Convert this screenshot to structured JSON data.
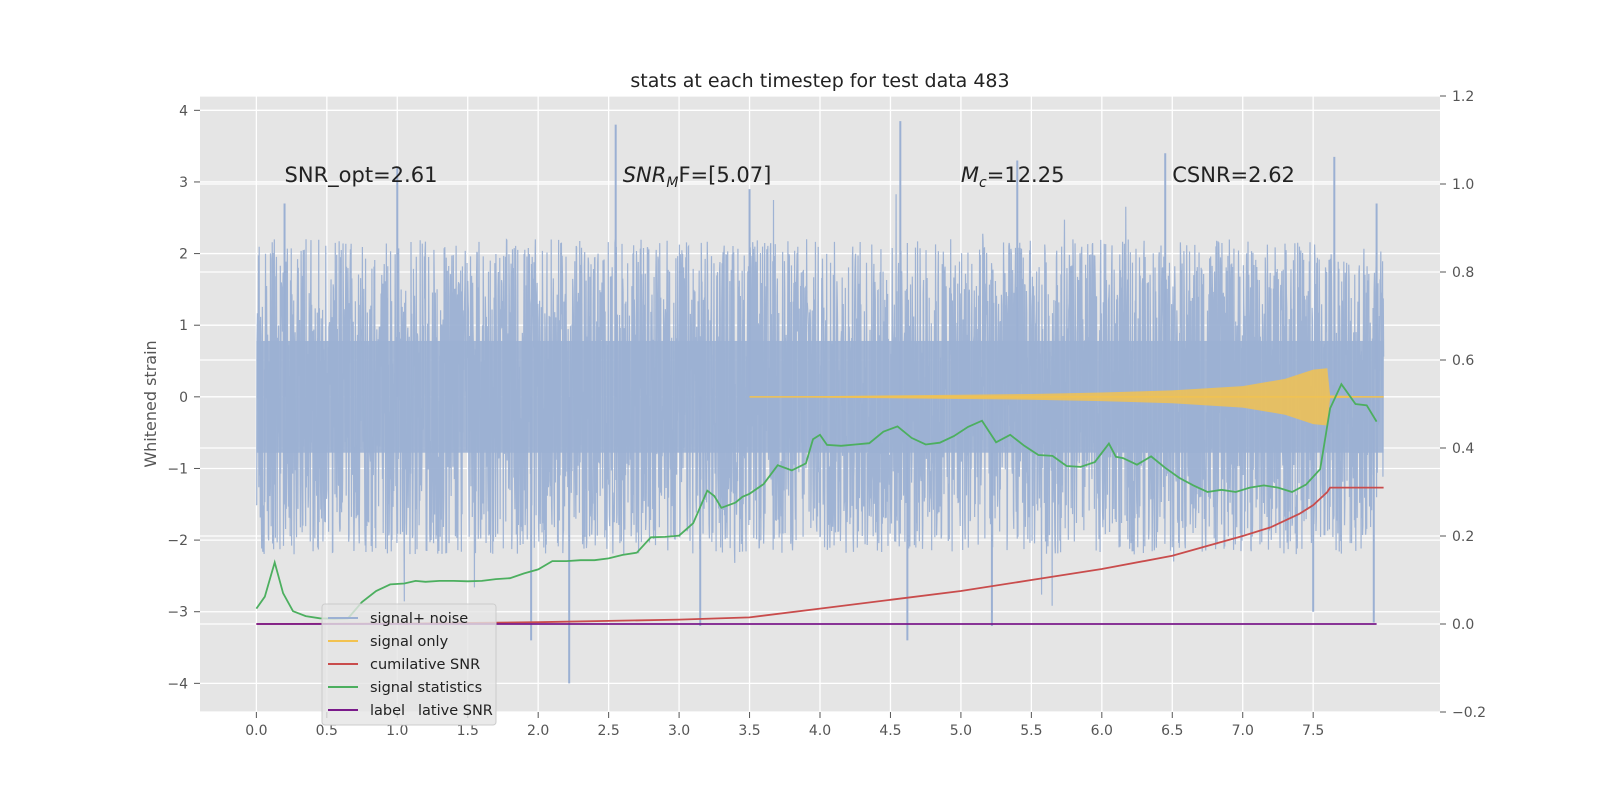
{
  "chart_data": {
    "type": "line",
    "title": "stats at each timestep for test data 483",
    "ylabel": "Whitened strain",
    "xlabel": "",
    "xlim": [
      -0.4,
      8.4
    ],
    "ylim": [
      -4.4,
      4.2
    ],
    "y2lim": [
      -0.2,
      1.2
    ],
    "grid": true,
    "legend_position": "lower-left",
    "x_ticks": [
      0.0,
      0.5,
      1.0,
      1.5,
      2.0,
      2.5,
      3.0,
      3.5,
      4.0,
      4.5,
      5.0,
      5.5,
      6.0,
      6.5,
      7.0,
      7.5
    ],
    "x_tick_labels": [
      "0.0",
      "0.5",
      "1.0",
      "1.5",
      "2.0",
      "2.5",
      "3.0",
      "3.5",
      "4.0",
      "4.5",
      "5.0",
      "5.5",
      "6.0",
      "6.5",
      "7.0",
      "7.5"
    ],
    "y_ticks": [
      4,
      3,
      2,
      1,
      0,
      -1,
      -2,
      -3,
      -4
    ],
    "y_tick_labels": [
      "4",
      "3",
      "2",
      "1",
      "0",
      "−1",
      "−2",
      "−3",
      "−4"
    ],
    "y2_ticks": [
      1.2,
      1.0,
      0.8,
      0.6,
      0.4,
      0.2,
      0.0,
      -0.2
    ],
    "y2_tick_labels": [
      "1.2",
      "1.0",
      "0.8",
      "0.6",
      "0.4",
      "0.2",
      "0.0",
      "−0.2"
    ],
    "annotations": [
      {
        "id": "snr-opt",
        "x": 0.2,
        "y": 3.1,
        "text": "SNR_opt=2.61"
      },
      {
        "id": "snr-mf",
        "x": 2.6,
        "y": 3.1,
        "base": "SNR",
        "sub": "M",
        "tail": "F=[5.07]"
      },
      {
        "id": "mc",
        "x": 5.0,
        "y": 3.1,
        "base": "M",
        "sub": "c",
        "tail": "=12.25"
      },
      {
        "id": "csnr",
        "x": 6.5,
        "y": 3.1,
        "text": "CSNR=2.62"
      }
    ],
    "legend": [
      {
        "label": "signal+ noise",
        "color": "#9bb0d3"
      },
      {
        "label": "signal only",
        "color": "#f2c250"
      },
      {
        "label": "cumilative SNR",
        "color": "#c94c4c"
      },
      {
        "label": "signal statistics",
        "color": "#4caf5f"
      },
      {
        "label": "label",
        "color": "#7a1a8a"
      }
    ],
    "legend_overlap_text": "lative SNR",
    "series": [
      {
        "name": "signal+ noise",
        "axis": "left",
        "color": "#9bb0d3",
        "description_envelope": {
          "x_start": 0.0,
          "x_end": 8.0,
          "typical_high": 2.2,
          "typical_low": -2.2,
          "peaks_high": [
            [
              0.2,
              2.7
            ],
            [
              1.0,
              3.2
            ],
            [
              2.55,
              3.8
            ],
            [
              3.5,
              2.9
            ],
            [
              4.57,
              3.85
            ],
            [
              5.4,
              3.3
            ],
            [
              6.45,
              3.4
            ],
            [
              7.65,
              3.35
            ],
            [
              7.95,
              2.7
            ]
          ],
          "peaks_low": [
            [
              1.95,
              -3.4
            ],
            [
              2.22,
              -4.0
            ],
            [
              3.15,
              -3.2
            ],
            [
              4.62,
              -3.4
            ],
            [
              5.22,
              -3.2
            ],
            [
              7.5,
              -3.0
            ],
            [
              7.93,
              -3.15
            ]
          ]
        }
      },
      {
        "name": "signal only",
        "axis": "left",
        "color": "#f2c250",
        "envelope": [
          [
            3.5,
            0.0
          ],
          [
            4.0,
            0.01
          ],
          [
            4.5,
            0.02
          ],
          [
            5.0,
            0.03
          ],
          [
            5.5,
            0.04
          ],
          [
            6.0,
            0.06
          ],
          [
            6.5,
            0.09
          ],
          [
            7.0,
            0.15
          ],
          [
            7.3,
            0.25
          ],
          [
            7.5,
            0.38
          ],
          [
            7.6,
            0.4
          ],
          [
            7.62,
            0.02
          ],
          [
            8.0,
            0.0
          ]
        ]
      },
      {
        "name": "cumilative SNR",
        "axis": "right",
        "color": "#c94c4c",
        "x": [
          0.0,
          1.0,
          2.0,
          3.0,
          3.5,
          4.0,
          4.5,
          5.0,
          5.5,
          6.0,
          6.5,
          7.0,
          7.2,
          7.4,
          7.5,
          7.55,
          7.6,
          7.62,
          8.0
        ],
        "y": [
          0.0,
          0.001,
          0.004,
          0.01,
          0.015,
          0.035,
          0.055,
          0.075,
          0.1,
          0.125,
          0.155,
          0.2,
          0.22,
          0.25,
          0.27,
          0.285,
          0.3,
          0.31,
          0.31
        ]
      },
      {
        "name": "signal statistics",
        "axis": "right",
        "color": "#4caf5f",
        "x": [
          0.0,
          0.06,
          0.13,
          0.19,
          0.26,
          0.35,
          0.45,
          0.55,
          0.65,
          0.75,
          0.85,
          0.95,
          1.05,
          1.13,
          1.2,
          1.3,
          1.4,
          1.5,
          1.6,
          1.7,
          1.8,
          1.9,
          2.0,
          2.1,
          2.13,
          2.2,
          2.3,
          2.4,
          2.5,
          2.6,
          2.7,
          2.8,
          2.9,
          3.0,
          3.1,
          3.2,
          3.25,
          3.3,
          3.4,
          3.45,
          3.5,
          3.6,
          3.7,
          3.8,
          3.9,
          3.95,
          4.0,
          4.05,
          4.15,
          4.25,
          4.35,
          4.45,
          4.55,
          4.65,
          4.75,
          4.85,
          4.95,
          5.05,
          5.15,
          5.25,
          5.35,
          5.45,
          5.55,
          5.65,
          5.75,
          5.85,
          5.95,
          6.05,
          6.1,
          6.15,
          6.25,
          6.35,
          6.45,
          6.55,
          6.65,
          6.75,
          6.85,
          6.95,
          7.05,
          7.15,
          7.25,
          7.35,
          7.45,
          7.55,
          7.62,
          7.7,
          7.8,
          7.88,
          7.95
        ],
        "y": [
          0.035,
          0.062,
          0.14,
          0.07,
          0.029,
          0.018,
          0.013,
          0.012,
          0.013,
          0.05,
          0.075,
          0.09,
          0.092,
          0.098,
          0.096,
          0.098,
          0.098,
          0.097,
          0.098,
          0.102,
          0.104,
          0.115,
          0.124,
          0.143,
          0.143,
          0.143,
          0.145,
          0.145,
          0.149,
          0.157,
          0.162,
          0.197,
          0.198,
          0.201,
          0.229,
          0.303,
          0.291,
          0.264,
          0.276,
          0.289,
          0.296,
          0.318,
          0.361,
          0.349,
          0.365,
          0.42,
          0.43,
          0.407,
          0.405,
          0.408,
          0.411,
          0.437,
          0.449,
          0.423,
          0.408,
          0.412,
          0.427,
          0.448,
          0.462,
          0.413,
          0.43,
          0.405,
          0.384,
          0.382,
          0.359,
          0.357,
          0.368,
          0.41,
          0.38,
          0.377,
          0.362,
          0.381,
          0.355,
          0.332,
          0.315,
          0.3,
          0.305,
          0.3,
          0.31,
          0.315,
          0.31,
          0.3,
          0.317,
          0.352,
          0.49,
          0.545,
          0.5,
          0.497,
          0.46
        ]
      },
      {
        "name": "label",
        "axis": "right",
        "color": "#7a1a8a",
        "x": [
          0.0,
          7.95
        ],
        "y": [
          0.0,
          0.0
        ]
      }
    ]
  }
}
